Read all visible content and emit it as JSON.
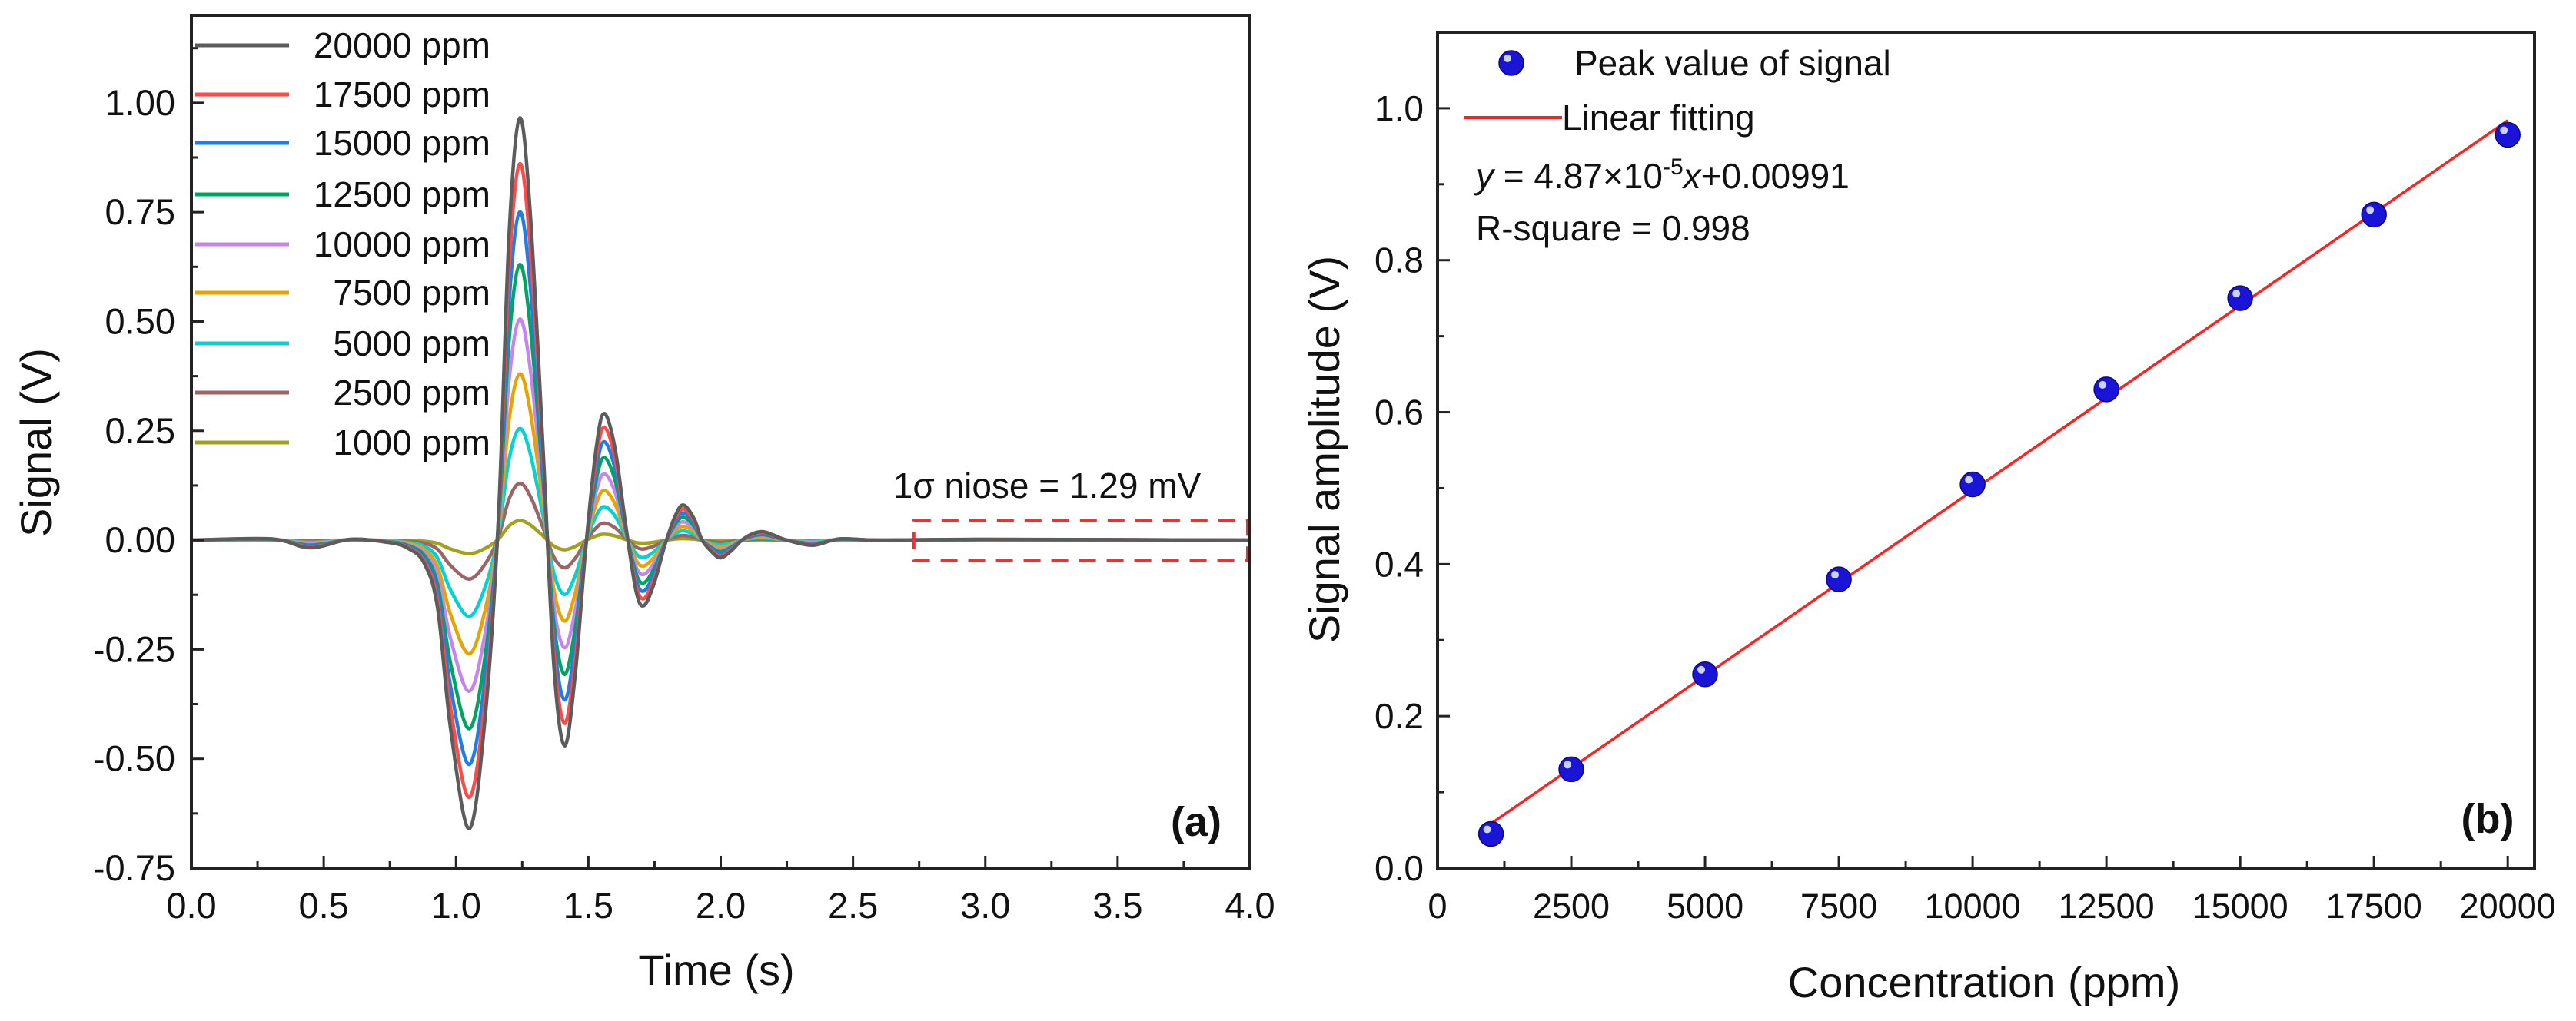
{
  "chart_data": [
    {
      "panel": "(a)",
      "type": "line",
      "xlabel": "Time (s)",
      "ylabel": "Signal (V)",
      "xlim": [
        0,
        4.0
      ],
      "ylim": [
        -0.75,
        1.2
      ],
      "xticks": [
        "0.0",
        "0.5",
        "1.0",
        "1.5",
        "2.0",
        "2.5",
        "3.0",
        "3.5",
        "4.0"
      ],
      "yticks": [
        "-0.75",
        "-0.50",
        "-0.25",
        "0.00",
        "0.25",
        "0.50",
        "0.75",
        "1.00"
      ],
      "legend_position": "top-left",
      "annotation": "1σ niose = 1.29 mV",
      "noise_box": {
        "t_start": 2.73,
        "t_end": 4.0,
        "v_low": -0.047,
        "v_high": 0.045,
        "color": "#ff2a2a"
      },
      "waveform_shape": {
        "t": [
          0,
          0.3,
          0.45,
          0.6,
          0.75,
          0.82,
          0.88,
          0.93,
          0.98,
          1.05,
          1.11,
          1.16,
          1.2,
          1.24,
          1.28,
          1.33,
          1.37,
          1.41,
          1.45,
          1.49,
          1.53,
          1.56,
          1.6,
          1.64,
          1.68,
          1.71,
          1.75,
          1.79,
          1.83,
          1.86,
          1.9,
          1.93,
          1.97,
          2.0,
          2.04,
          2.08,
          2.12,
          2.16,
          2.2,
          2.25,
          2.35,
          2.45,
          2.6,
          3.0,
          4.0
        ],
        "v": [
          0,
          0.003,
          -0.018,
          0.002,
          -0.006,
          -0.02,
          -0.055,
          -0.16,
          -0.45,
          -0.684,
          -0.42,
          0.05,
          0.72,
          1.0,
          0.78,
          0.2,
          -0.3,
          -0.487,
          -0.32,
          -0.02,
          0.22,
          0.3,
          0.22,
          0.04,
          -0.12,
          -0.155,
          -0.1,
          -0.01,
          0.06,
          0.083,
          0.05,
          0.0,
          -0.03,
          -0.042,
          -0.025,
          0.0,
          0.015,
          0.02,
          0.012,
          0.0,
          -0.012,
          0.003,
          0,
          0.002,
          0
        ]
      },
      "series": [
        {
          "name": "20000 ppm",
          "peak": 0.965,
          "color": "#5c5c5c"
        },
        {
          "name": "17500 ppm",
          "peak": 0.86,
          "color": "#ff4a4a"
        },
        {
          "name": "15000 ppm",
          "peak": 0.75,
          "color": "#1c7ee6"
        },
        {
          "name": "12500 ppm",
          "peak": 0.63,
          "color": "#00a462"
        },
        {
          "name": "10000 ppm",
          "peak": 0.505,
          "color": "#c884ee"
        },
        {
          "name": "7500 ppm",
          "peak": 0.38,
          "color": "#e6a400"
        },
        {
          "name": "5000 ppm",
          "peak": 0.255,
          "color": "#00d2d6"
        },
        {
          "name": "2500 ppm",
          "peak": 0.13,
          "color": "#9c6464"
        },
        {
          "name": "1000 ppm",
          "peak": 0.045,
          "color": "#a3a01c"
        }
      ]
    },
    {
      "panel": "(b)",
      "type": "scatter",
      "xlabel": "Concentration (ppm)",
      "ylabel": "Signal amplitude (V)",
      "xlim": [
        0,
        20500
      ],
      "ylim": [
        0,
        1.1
      ],
      "xticks": [
        "0",
        "2500",
        "5000",
        "7500",
        "10000",
        "12500",
        "15000",
        "17500",
        "20000"
      ],
      "yticks": [
        "0.0",
        "0.2",
        "0.4",
        "0.6",
        "0.8",
        "1.0"
      ],
      "legend_position": "top-left",
      "series": [
        {
          "name": "Peak value of signal",
          "color": "#1010e0",
          "x": [
            1000,
            2500,
            5000,
            7500,
            10000,
            12500,
            15000,
            17500,
            20000
          ],
          "y": [
            0.045,
            0.13,
            0.255,
            0.38,
            0.505,
            0.63,
            0.75,
            0.86,
            0.965
          ]
        },
        {
          "name": "Linear fitting",
          "color": "#ff2020",
          "slope": 4.87e-05,
          "intercept": 0.00991,
          "x_range": [
            1000,
            20000
          ]
        }
      ],
      "equation": {
        "prefix": "y",
        "text1": " = 4.87×10",
        "exp": "-5",
        "var": "x",
        "text2": "+0.00991"
      },
      "r_square": "R-square = 0.998"
    }
  ]
}
